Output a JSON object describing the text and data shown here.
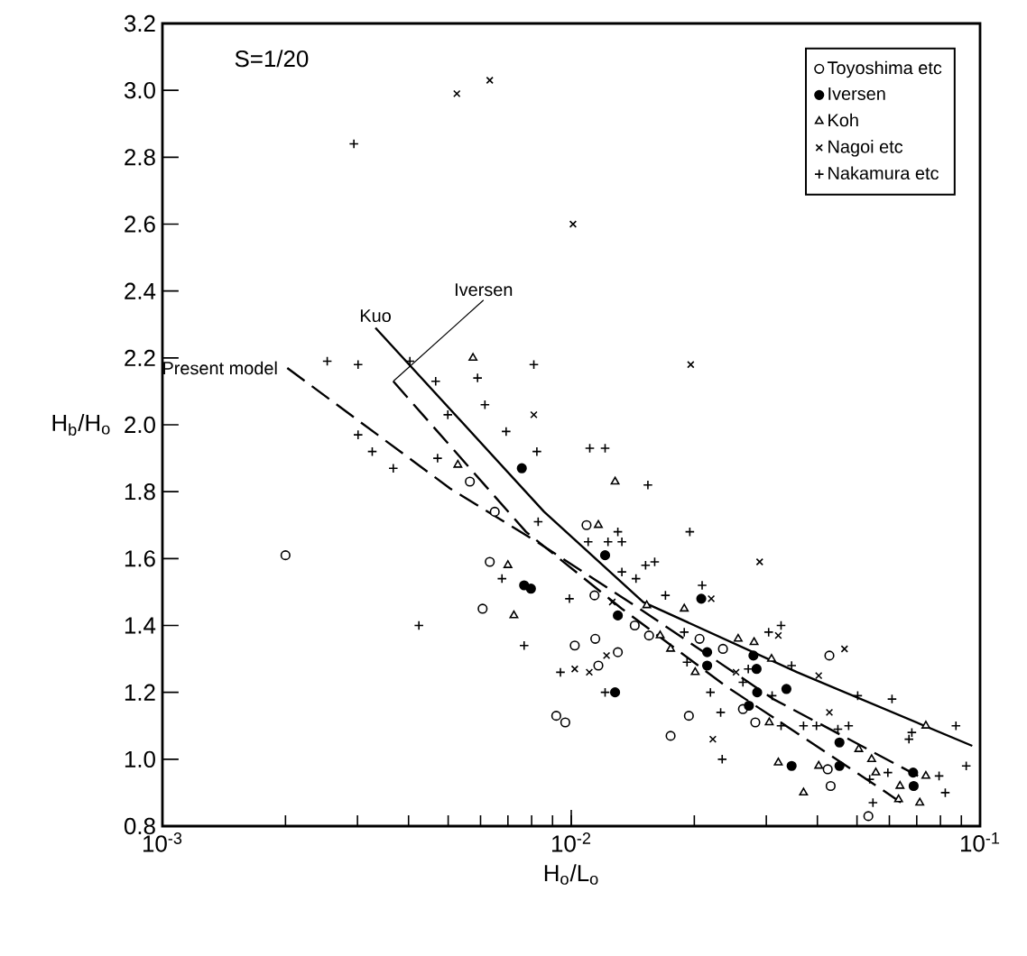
{
  "chart_data": {
    "type": "scatter",
    "xlabel": "H$_{o}$/L$_{o}$",
    "ylabel": "H$_{b}$/H$_{o}$",
    "log": "x",
    "legend": "top right",
    "xlim": [
      0.001,
      0.1
    ],
    "xticks": [
      {
        "value": 0.001,
        "label": "10$^{-3}$"
      },
      {
        "value": 0.01,
        "label": "10$^{-2}$"
      },
      {
        "value": 0.1,
        "label": "10$^{-1}$"
      }
    ],
    "ylim": [
      0.8,
      3.2
    ],
    "yticks": [
      0.8,
      {
        "value": 1.0,
        "label": "1.0"
      },
      1.2,
      1.4,
      1.6,
      1.8,
      {
        "value": 2.0,
        "label": "2.0"
      },
      2.2,
      2.4,
      2.6,
      2.8,
      {
        "value": 3.0,
        "label": "3.0"
      },
      3.2
    ],
    "annotations": [
      "S=1/20"
    ],
    "series": [
      {
        "name": "Toyoshima etc",
        "color": "#ffffff",
        "marker": "circle",
        "x": [
          0.002,
          0.00565,
          0.0065,
          0.00632,
          0.00607,
          0.0102,
          0.0109,
          0.0114,
          0.0143,
          0.01145,
          0.013,
          0.01165,
          0.0155,
          0.0206,
          0.0235,
          0.0428,
          0.00919,
          0.00967,
          0.0194,
          0.0175,
          0.0263,
          0.0282,
          0.0424,
          0.0431,
          0.0533
        ],
        "values": [
          1.61,
          1.83,
          1.74,
          1.59,
          1.45,
          1.34,
          1.7,
          1.49,
          1.4,
          1.36,
          1.32,
          1.28,
          1.37,
          1.36,
          1.33,
          1.31,
          1.13,
          1.11,
          1.13,
          1.07,
          1.15,
          1.11,
          0.97,
          0.92,
          0.83
        ]
      },
      {
        "name": "Iversen",
        "color": "#000000",
        "marker": "circle",
        "x": [
          0.00757,
          0.00767,
          0.00797,
          0.0121,
          0.0208,
          0.013,
          0.0215,
          0.0279,
          0.0215,
          0.0284,
          0.0128,
          0.0285,
          0.0272,
          0.0336,
          0.0453,
          0.0346,
          0.0453,
          0.0686,
          0.0688
        ],
        "values": [
          1.87,
          1.52,
          1.51,
          1.61,
          1.48,
          1.43,
          1.32,
          1.31,
          1.28,
          1.27,
          1.2,
          1.2,
          1.16,
          1.21,
          1.05,
          0.98,
          0.98,
          0.96,
          0.92
        ]
      },
      {
        "name": "Koh",
        "color": "#ffffff",
        "marker": "triangle",
        "x": [
          0.00575,
          0.00528,
          0.007,
          0.00724,
          0.0128,
          0.01165,
          0.0189,
          0.0153,
          0.0165,
          0.0175,
          0.0256,
          0.028,
          0.0309,
          0.0201,
          0.0305,
          0.0505,
          0.0543,
          0.0737,
          0.0321,
          0.0403,
          0.037,
          0.0556,
          0.0637,
          0.0632,
          0.0712,
          0.0737
        ],
        "values": [
          2.2,
          1.88,
          1.58,
          1.43,
          1.83,
          1.7,
          1.45,
          1.46,
          1.37,
          1.33,
          1.36,
          1.35,
          1.3,
          1.26,
          1.11,
          1.03,
          1.0,
          1.1,
          0.99,
          0.98,
          0.9,
          0.96,
          0.92,
          0.88,
          0.87,
          0.95
        ]
      },
      {
        "name": "Nagoi etc",
        "color": "#000000",
        "marker": "cross",
        "x": [
          0.00525,
          0.00632,
          0.0101,
          0.0196,
          0.0081,
          0.0289,
          0.022,
          0.0126,
          0.0122,
          0.01107,
          0.0102,
          0.0321,
          0.0466,
          0.0403,
          0.0253,
          0.0428,
          0.0222
        ],
        "values": [
          2.99,
          3.03,
          2.6,
          2.18,
          2.03,
          1.59,
          1.48,
          1.47,
          1.31,
          1.26,
          1.27,
          1.37,
          1.33,
          1.25,
          1.26,
          1.14,
          1.06
        ]
      },
      {
        "name": "Nakamura etc",
        "color": "#000000",
        "marker": "plus",
        "x": [
          0.00294,
          0.00253,
          0.00301,
          0.00403,
          0.0059,
          0.00466,
          0.0081,
          0.00615,
          0.00499,
          0.00693,
          0.00301,
          0.00326,
          0.00367,
          0.00471,
          0.00824,
          0.0083,
          0.00677,
          0.0099,
          0.00424,
          0.00767,
          0.00941,
          0.0111,
          0.0121,
          0.0154,
          0.013,
          0.0195,
          0.011,
          0.0123,
          0.0133,
          0.0152,
          0.016,
          0.0133,
          0.0144,
          0.017,
          0.0209,
          0.0189,
          0.0304,
          0.0326,
          0.0346,
          0.0192,
          0.0271,
          0.0263,
          0.0121,
          0.0232,
          0.0234,
          0.0219,
          0.031,
          0.0326,
          0.037,
          0.0398,
          0.0449,
          0.0477,
          0.0502,
          0.0609,
          0.0681,
          0.067,
          0.0873,
          0.0925,
          0.0537,
          0.0595,
          0.0547,
          0.0794,
          0.0822
        ],
        "values": [
          2.84,
          2.19,
          2.18,
          2.19,
          2.14,
          2.13,
          2.18,
          2.06,
          2.03,
          1.98,
          1.97,
          1.92,
          1.87,
          1.9,
          1.92,
          1.71,
          1.54,
          1.48,
          1.4,
          1.34,
          1.26,
          1.93,
          1.93,
          1.82,
          1.68,
          1.68,
          1.65,
          1.65,
          1.65,
          1.58,
          1.59,
          1.56,
          1.54,
          1.49,
          1.52,
          1.38,
          1.38,
          1.4,
          1.28,
          1.29,
          1.27,
          1.23,
          1.2,
          1.14,
          1.0,
          1.2,
          1.19,
          1.1,
          1.1,
          1.1,
          1.09,
          1.1,
          1.19,
          1.18,
          1.08,
          1.06,
          1.1,
          0.98,
          0.94,
          0.96,
          0.87,
          0.95,
          0.9
        ]
      },
      {
        "type": "line",
        "name": "Iversen",
        "color": "#000000",
        "line_style": "dashed",
        "x": [
          0.00367,
          0.00775,
          0.0133,
          0.0238,
          0.0575,
          0.0659
        ],
        "values": [
          2.13,
          1.68,
          1.45,
          1.22,
          0.91,
          0.86
        ]
      },
      {
        "type": "line",
        "name": "Kuo",
        "color": "#000000",
        "line_style": "solid",
        "x": [
          0.00332,
          0.00858,
          0.015,
          0.0357,
          0.0957
        ],
        "values": [
          2.29,
          1.74,
          1.47,
          1.26,
          1.04
        ]
      },
      {
        "type": "line",
        "name": "Present model",
        "color": "#000000",
        "line_style": "dashed",
        "x": [
          0.00202,
          0.00505,
          0.00824,
          0.0147,
          0.0312,
          0.0705
        ],
        "values": [
          2.17,
          1.81,
          1.65,
          1.45,
          1.18,
          0.95
        ]
      }
    ]
  }
}
